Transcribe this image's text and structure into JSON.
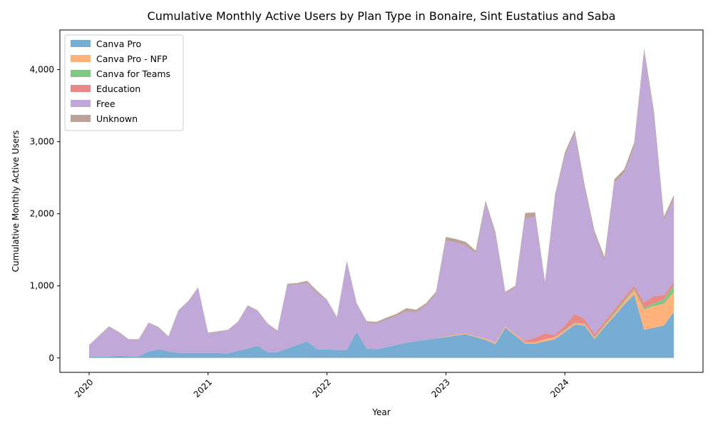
{
  "chart_data": {
    "type": "area",
    "stacked": true,
    "title": "Cumulative Monthly Active Users by Plan Type in Bonaire, Sint Eustatius and Saba",
    "xlabel": "Year",
    "ylabel": "Cumulative Monthly Active Users",
    "x_ticks": [
      "2020",
      "2021",
      "2022",
      "2023",
      "2024"
    ],
    "y_ticks": [
      "0",
      "1,000",
      "2,000",
      "3,000",
      "4,000"
    ],
    "ylim": [
      -200,
      4550
    ],
    "legend_position": "upper-left",
    "grid": false,
    "x": [
      "2020-01",
      "2020-02",
      "2020-03",
      "2020-04",
      "2020-05",
      "2020-06",
      "2020-07",
      "2020-08",
      "2020-09",
      "2020-10",
      "2020-11",
      "2020-12",
      "2021-01",
      "2021-02",
      "2021-03",
      "2021-04",
      "2021-05",
      "2021-06",
      "2021-07",
      "2021-08",
      "2021-09",
      "2021-10",
      "2021-11",
      "2021-12",
      "2022-01",
      "2022-02",
      "2022-03",
      "2022-04",
      "2022-05",
      "2022-06",
      "2022-07",
      "2022-08",
      "2022-09",
      "2022-10",
      "2022-11",
      "2022-12",
      "2023-01",
      "2023-02",
      "2023-03",
      "2023-04",
      "2023-05",
      "2023-06",
      "2023-07",
      "2023-08",
      "2023-09",
      "2023-10",
      "2023-11",
      "2023-12",
      "2024-01",
      "2024-02",
      "2024-03",
      "2024-04",
      "2024-05",
      "2024-06",
      "2024-07",
      "2024-08",
      "2024-09",
      "2024-10",
      "2024-11",
      "2024-12"
    ],
    "series": [
      {
        "name": "Canva Pro",
        "color": "#77acd3",
        "values": [
          20,
          20,
          20,
          30,
          20,
          20,
          90,
          120,
          90,
          70,
          70,
          70,
          70,
          70,
          60,
          100,
          130,
          170,
          80,
          80,
          130,
          180,
          230,
          120,
          120,
          110,
          110,
          360,
          130,
          120,
          150,
          180,
          210,
          230,
          250,
          270,
          290,
          310,
          330,
          290,
          250,
          190,
          420,
          310,
          200,
          200,
          230,
          260,
          360,
          460,
          450,
          260,
          430,
          580,
          740,
          880,
          390,
          420,
          450,
          640
        ]
      },
      {
        "name": "Canva Pro - NFP",
        "color": "#ffb27a",
        "values": [
          0,
          0,
          0,
          0,
          0,
          0,
          0,
          0,
          0,
          0,
          0,
          0,
          0,
          0,
          0,
          0,
          0,
          0,
          0,
          0,
          0,
          0,
          0,
          0,
          0,
          0,
          0,
          0,
          0,
          0,
          0,
          0,
          0,
          0,
          0,
          0,
          10,
          10,
          10,
          10,
          20,
          20,
          20,
          20,
          20,
          20,
          30,
          30,
          20,
          20,
          20,
          20,
          20,
          30,
          40,
          60,
          280,
          300,
          300,
          270
        ]
      },
      {
        "name": "Canva for Teams",
        "color": "#84c684",
        "values": [
          0,
          0,
          0,
          0,
          0,
          0,
          0,
          0,
          0,
          0,
          0,
          0,
          0,
          0,
          0,
          0,
          0,
          0,
          0,
          0,
          0,
          0,
          0,
          0,
          0,
          0,
          0,
          0,
          0,
          0,
          0,
          0,
          0,
          0,
          0,
          0,
          0,
          0,
          0,
          0,
          0,
          0,
          0,
          0,
          0,
          0,
          0,
          0,
          10,
          10,
          10,
          10,
          10,
          20,
          20,
          20,
          20,
          40,
          60,
          100
        ]
      },
      {
        "name": "Education",
        "color": "#e88888",
        "values": [
          0,
          0,
          0,
          0,
          0,
          0,
          0,
          0,
          0,
          0,
          0,
          0,
          0,
          0,
          0,
          0,
          0,
          0,
          0,
          0,
          0,
          0,
          0,
          0,
          0,
          0,
          0,
          0,
          0,
          0,
          0,
          0,
          0,
          0,
          0,
          0,
          0,
          0,
          0,
          0,
          0,
          0,
          0,
          0,
          20,
          60,
          80,
          30,
          60,
          120,
          60,
          40,
          40,
          40,
          40,
          40,
          80,
          100,
          60,
          40
        ]
      },
      {
        "name": "Free",
        "color": "#c0a8d8",
        "values": [
          150,
          280,
          410,
          320,
          230,
          230,
          390,
          300,
          200,
          580,
          710,
          900,
          270,
          290,
          320,
          390,
          590,
          480,
          390,
          290,
          880,
          840,
          810,
          780,
          680,
          450,
          1230,
          390,
          360,
          350,
          380,
          400,
          440,
          400,
          480,
          620,
          1330,
          1280,
          1220,
          1150,
          1870,
          1500,
          460,
          650,
          1690,
          1680,
          690,
          1910,
          2350,
          2500,
          1810,
          1380,
          850,
          1760,
          1730,
          1930,
          3470,
          2510,
          1040,
          1160
        ]
      },
      {
        "name": "Unknown",
        "color": "#bca29a",
        "values": [
          10,
          10,
          10,
          10,
          10,
          10,
          10,
          10,
          10,
          10,
          10,
          10,
          10,
          10,
          10,
          10,
          10,
          10,
          10,
          10,
          20,
          20,
          30,
          30,
          10,
          10,
          10,
          10,
          20,
          30,
          30,
          30,
          40,
          40,
          30,
          30,
          50,
          50,
          50,
          40,
          40,
          40,
          20,
          20,
          80,
          60,
          30,
          30,
          50,
          50,
          50,
          50,
          50,
          50,
          50,
          60,
          50,
          50,
          50,
          50
        ]
      }
    ]
  }
}
